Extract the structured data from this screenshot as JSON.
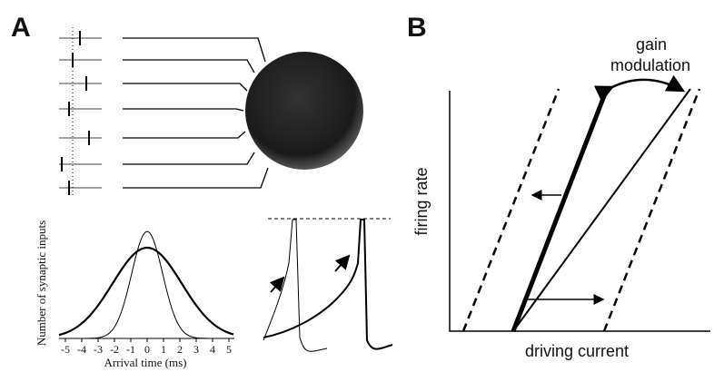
{
  "panel_a": {
    "label": "A",
    "y_axis_label": "Number of synaptic inputs",
    "x_axis_label": "Arrival time (ms)",
    "x_ticks": [
      "-5",
      "-4",
      "-3",
      "-2",
      "-1",
      "0",
      "1",
      "2",
      "3",
      "4",
      "5"
    ]
  },
  "panel_b": {
    "label": "B",
    "annotation_lines": [
      "gain",
      "modulation"
    ],
    "y_axis_label": "firing rate",
    "x_axis_label": "driving current"
  }
}
